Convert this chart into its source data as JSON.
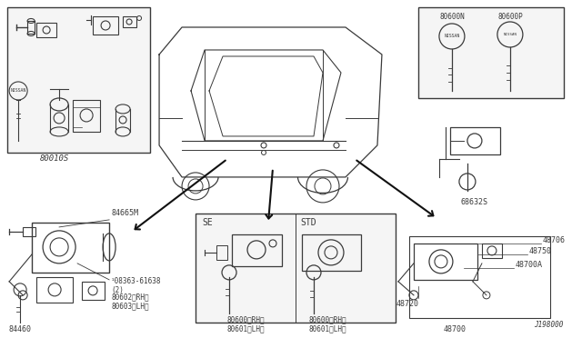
{
  "bg_color": "#ffffff",
  "line_color": "#3a3a3a",
  "text_color": "#3a3a3a",
  "box_bg": "#f8f8f8",
  "labels": {
    "top_left_box": "80010S",
    "bottom_left_label1": "84460",
    "bottom_left_label2": "84665M",
    "bottom_left_label3": "¹08363-61638\n(2)",
    "bottom_left_label4": "80602〈RH〉\n80603〈LH〉",
    "se": "SE",
    "std": "STD",
    "se_part": "80600〈RH〉\n80601〈LH〉",
    "std_part": "80600〈RH〉\n80601〈LH〉",
    "key_n": "80600N",
    "key_p": "80600P",
    "lock_label": "68632S",
    "p48706": "48706",
    "p48750": "48750",
    "p48700A": "48700A",
    "p48720": "48720",
    "p48700": "48700",
    "diagram_num": "J198000"
  },
  "font_size": 6.5,
  "font_size_small": 5.5
}
